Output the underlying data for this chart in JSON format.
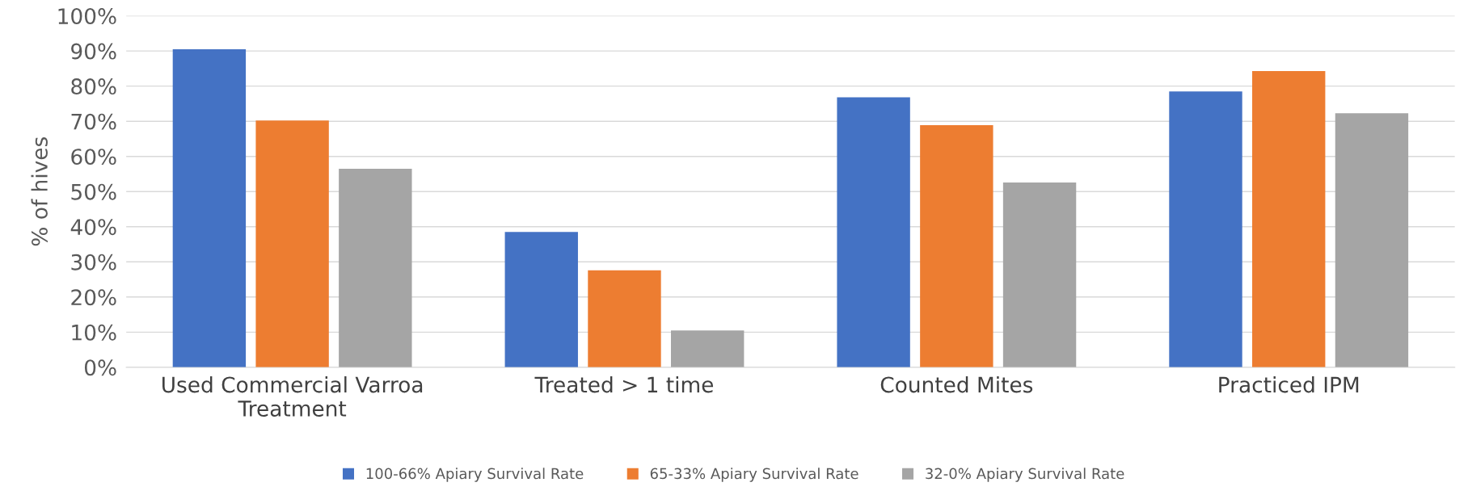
{
  "chart_data": {
    "type": "bar",
    "ylabel": "% of hives",
    "categories": [
      "Used Commercial Varroa\nTreatment",
      "Treated > 1 time",
      "Counted Mites",
      "Practiced IPM"
    ],
    "series": [
      {
        "name": "100-66% Apiary Survival Rate",
        "color": "#4472c4",
        "values": [
          90.5,
          38.5,
          76.8,
          78.5
        ]
      },
      {
        "name": "65-33% Apiary Survival Rate",
        "color": "#ed7d31",
        "values": [
          70.2,
          27.6,
          68.9,
          84.3
        ]
      },
      {
        "name": "32-0% Apiary Survival Rate",
        "color": "#a5a5a5",
        "values": [
          56.5,
          10.5,
          52.6,
          72.3
        ]
      }
    ],
    "ylim": [
      0,
      100
    ],
    "yticks": [
      {
        "value": 0,
        "label": "0%"
      },
      {
        "value": 10,
        "label": "10%"
      },
      {
        "value": 20,
        "label": "20%"
      },
      {
        "value": 30,
        "label": "30%"
      },
      {
        "value": 40,
        "label": "40%"
      },
      {
        "value": 50,
        "label": "50%"
      },
      {
        "value": 60,
        "label": "60%"
      },
      {
        "value": 70,
        "label": "70%"
      },
      {
        "value": 80,
        "label": "80%"
      },
      {
        "value": 90,
        "label": "90%"
      },
      {
        "value": 100,
        "label": "100%"
      }
    ],
    "grid": "y",
    "legend": "bottom"
  }
}
